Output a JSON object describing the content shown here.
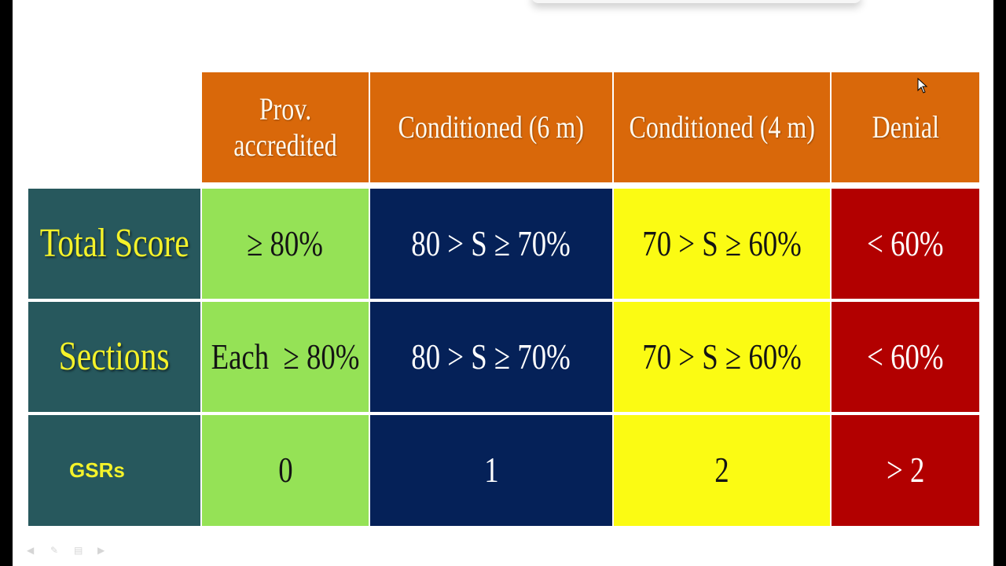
{
  "table": {
    "headers": [
      {
        "id": "prov",
        "label": "Prov. accredited"
      },
      {
        "id": "cond6",
        "label": "Conditioned (6 m)"
      },
      {
        "id": "cond4",
        "label": "Conditioned (4 m)"
      },
      {
        "id": "denial",
        "label": "Denial"
      }
    ],
    "rows": [
      {
        "label": "Total Score",
        "cells": [
          "≥ 80%",
          "80 > S ≥ 70%",
          "70 > S ≥ 60%",
          "< 60%"
        ]
      },
      {
        "label": "Sections",
        "cells": [
          "Each  ≥ 80%",
          "80 > S ≥ 70%",
          "70 > S ≥ 60%",
          "< 60%"
        ]
      },
      {
        "label": "GSRs",
        "cells": [
          "0",
          "1",
          "2",
          "> 2"
        ]
      }
    ]
  },
  "colors": {
    "header": "#d9680a",
    "row_header": "#27585d",
    "row_header_text": "#f4f22a",
    "prov": "#95e256",
    "cond6": "#052158",
    "cond4": "#fbfb13",
    "denial": "#b20000"
  },
  "toolbar_icons": [
    "back-arrow-icon",
    "pen-icon",
    "menu-icon",
    "forward-arrow-icon"
  ]
}
